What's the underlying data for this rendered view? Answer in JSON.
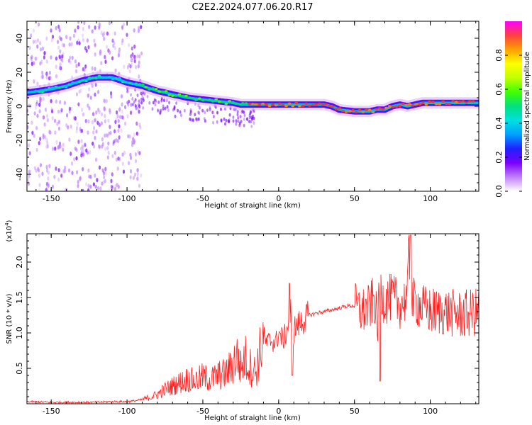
{
  "title": "C2E2.2024.077.06.20.R17",
  "chart_data": [
    {
      "type": "heatmap",
      "xlabel": "Height of straight line (km)",
      "ylabel": "Frequency (Hz)",
      "xlim": [
        -166,
        132
      ],
      "ylim": [
        -50,
        50
      ],
      "xticks": [
        -150,
        -100,
        -50,
        0,
        50,
        100
      ],
      "yticks": [
        -40,
        -20,
        0,
        20,
        40
      ],
      "colorbar": {
        "label": "Normalized spectral amplitude",
        "range": [
          0.0,
          1.0
        ],
        "ticks": [
          "0.0",
          "0.2",
          "0.4",
          "0.6",
          "0.8"
        ],
        "colormap": [
          "#ffffff",
          "#c080ff",
          "#7a00ff",
          "#2020ff",
          "#00a0ff",
          "#00e0e0",
          "#00e080",
          "#40ff00",
          "#c0ff00",
          "#ffff00",
          "#ffa000",
          "#ff4040",
          "#ff00ff"
        ]
      },
      "ridge": {
        "x": [
          -166,
          -150,
          -140,
          -130,
          -120,
          -110,
          -100,
          -90,
          -80,
          -70,
          -60,
          -50,
          -40,
          -30,
          -25,
          -20,
          -10,
          0,
          10,
          20,
          30,
          35,
          40,
          50,
          60,
          65,
          70,
          75,
          80,
          85,
          90,
          95,
          100,
          110,
          120,
          132
        ],
        "y": [
          8,
          10,
          12,
          15,
          17,
          17,
          14,
          12,
          9,
          7,
          5,
          4,
          3,
          2,
          1,
          1,
          1,
          1,
          1,
          1,
          1,
          0,
          -2,
          -3,
          -3,
          -2,
          -2,
          0,
          1,
          0,
          1,
          2,
          2,
          2,
          2,
          2
        ]
      }
    },
    {
      "type": "line",
      "xlabel": "Height of straight line (km)",
      "ylabel": "SNR (10 * v/v)",
      "scale_label": "(x10",
      "scale_exp": "4",
      "scale_suffix": ")",
      "xlim": [
        -166,
        132
      ],
      "ylim": [
        0,
        2.4
      ],
      "xticks": [
        -150,
        -100,
        -50,
        0,
        50,
        100
      ],
      "yticks": [
        "0.5",
        "1.0",
        "1.5",
        "2.0"
      ],
      "color": "#ff2020",
      "series": [
        {
          "x": [
            -166,
            -150,
            -140,
            -130,
            -120,
            -110,
            -100,
            -95,
            -90,
            -85,
            -80,
            -75,
            -70,
            -65,
            -60,
            -55,
            -50,
            -45,
            -40,
            -35,
            -30,
            -28,
            -25,
            -22,
            -20,
            -15,
            -10,
            -8,
            -5,
            -2,
            0,
            3,
            5,
            8,
            9,
            10,
            12,
            15,
            20,
            25,
            30,
            40,
            45,
            50,
            55,
            60,
            63,
            65,
            67,
            70,
            75,
            80,
            85,
            86,
            87,
            90,
            95,
            100,
            110,
            120,
            132
          ],
          "y": [
            0.03,
            0.02,
            0.02,
            0.02,
            0.02,
            0.03,
            0.03,
            0.04,
            0.06,
            0.09,
            0.13,
            0.2,
            0.25,
            0.3,
            0.35,
            0.32,
            0.38,
            0.34,
            0.4,
            0.42,
            0.55,
            0.7,
            0.5,
            0.65,
            0.55,
            0.45,
            0.95,
            0.85,
            0.9,
            0.85,
            1.0,
            0.9,
            1.0,
            1.3,
            0.4,
            1.05,
            1.1,
            1.15,
            1.25,
            1.28,
            1.3,
            1.35,
            1.38,
            1.38,
            1.3,
            1.35,
            1.5,
            1.1,
            1.6,
            1.45,
            1.5,
            1.4,
            1.5,
            2.3,
            1.4,
            1.45,
            1.35,
            1.3,
            1.3,
            1.25,
            1.3
          ]
        }
      ]
    }
  ]
}
